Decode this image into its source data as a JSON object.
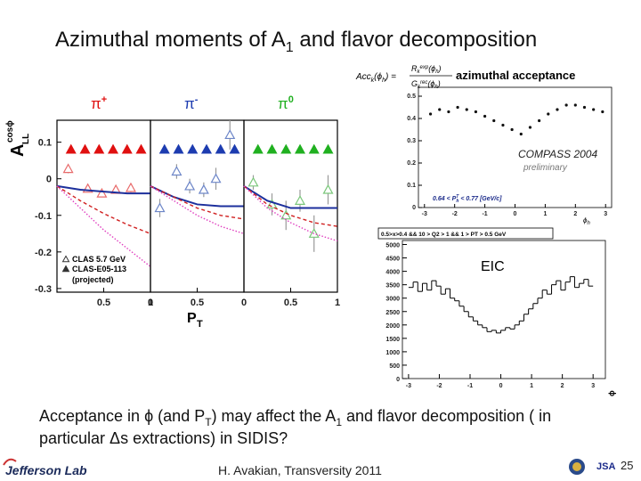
{
  "slide": {
    "title": [
      "Azimuthal moments of A",
      "1",
      " and flavor decomposition"
    ],
    "body_line1": [
      "Acceptance in ",
      "ϕ",
      " (and P",
      "T",
      ") may affect the A",
      "1",
      " and flavor decomposition ( in"
    ],
    "body_line2": [
      "particular ",
      "Δ",
      "s extractions)  in SIDIS?"
    ],
    "footer": {
      "logo": "Jefferson Lab",
      "credit": "H. Avakian, Transversity 2011",
      "page": "25",
      "org": "JSA"
    }
  },
  "chart_data": [
    {
      "type": "panels",
      "y_label": "A",
      "y_label_sup": "cosϕ",
      "y_label_sub": "LL",
      "x_label": "P",
      "x_label_sub": "T",
      "xlim": [
        0,
        1
      ],
      "ylim": [
        -0.31,
        0.16
      ],
      "yticks": [
        0.1,
        0,
        -0.1,
        -0.2,
        -0.3
      ],
      "series_names": [
        "CLAS 5.7 GeV",
        "CLAS-E05-113"
      ],
      "legend_note": "(projected)",
      "panels": [
        {
          "label": "π",
          "label_sup": "+",
          "label_color": "#e01010",
          "xticks": [
            0.5,
            1
          ],
          "series": [
            {
              "marker": "open-triangle",
              "color": "#e86a6a",
              "x": [
                0.12,
                0.33,
                0.48,
                0.63,
                0.79
              ],
              "values": [
                0.027,
                -0.027,
                -0.04,
                -0.03,
                -0.025
              ],
              "errors": [
                0.012,
                0.01,
                0.01,
                0.01,
                0.012
              ]
            },
            {
              "marker": "filled-triangle",
              "color": "#e01010",
              "x": [
                0.15,
                0.3,
                0.45,
                0.6,
                0.75,
                0.9
              ],
              "values": [
                0.08,
                0.08,
                0.08,
                0.08,
                0.08,
                0.08
              ]
            },
            {
              "line": "solid",
              "color": "#1c2f9c",
              "x": [
                0,
                0.25,
                0.5,
                0.75,
                1
              ],
              "values": [
                -0.02,
                -0.03,
                -0.035,
                -0.04,
                -0.04
              ]
            },
            {
              "line": "dashed",
              "color": "#d02020",
              "x": [
                0,
                0.25,
                0.5,
                0.75,
                1
              ],
              "values": [
                -0.02,
                -0.06,
                -0.095,
                -0.125,
                -0.15
              ]
            },
            {
              "line": "dotted",
              "color": "#e040c0",
              "x": [
                0,
                0.25,
                0.5,
                0.75,
                1
              ],
              "values": [
                -0.02,
                -0.08,
                -0.14,
                -0.19,
                -0.24
              ]
            }
          ]
        },
        {
          "label": "π",
          "label_sup": "-",
          "label_color": "#1d3cb0",
          "xticks": [
            0,
            0.5
          ],
          "series": [
            {
              "marker": "open-triangle",
              "color": "#6d86c8",
              "x": [
                0.1,
                0.28,
                0.42,
                0.57,
                0.7,
                0.85
              ],
              "values": [
                -0.08,
                0.02,
                -0.02,
                -0.03,
                0.0,
                0.12
              ],
              "errors": [
                0.025,
                0.02,
                0.02,
                0.02,
                0.03,
                0.04
              ]
            },
            {
              "marker": "filled-triangle",
              "color": "#1d3cb0",
              "x": [
                0.15,
                0.3,
                0.45,
                0.6,
                0.75,
                0.9
              ],
              "values": [
                0.08,
                0.08,
                0.08,
                0.08,
                0.08,
                0.08
              ]
            },
            {
              "line": "solid",
              "color": "#1c2f9c",
              "x": [
                0,
                0.25,
                0.5,
                0.75,
                1
              ],
              "values": [
                -0.02,
                -0.05,
                -0.07,
                -0.075,
                -0.075
              ]
            },
            {
              "line": "dashed",
              "color": "#d02020",
              "x": [
                0,
                0.25,
                0.5,
                0.75,
                1
              ],
              "values": [
                -0.02,
                -0.05,
                -0.08,
                -0.1,
                -0.11
              ]
            },
            {
              "line": "dotted",
              "color": "#e040c0",
              "x": [
                0,
                0.25,
                0.5,
                0.75,
                1
              ],
              "values": [
                -0.02,
                -0.06,
                -0.1,
                -0.13,
                -0.15
              ]
            }
          ]
        },
        {
          "label": "π",
          "label_sup": "0",
          "label_color": "#20b020",
          "xticks": [
            0,
            0.5,
            1
          ],
          "series": [
            {
              "marker": "open-triangle",
              "color": "#7bc77b",
              "x": [
                0.1,
                0.3,
                0.45,
                0.6,
                0.75,
                0.9
              ],
              "values": [
                -0.01,
                -0.07,
                -0.1,
                -0.06,
                -0.15,
                -0.03
              ],
              "errors": [
                0.02,
                0.03,
                0.04,
                0.03,
                0.05,
                0.04
              ]
            },
            {
              "marker": "filled-triangle",
              "color": "#20b020",
              "x": [
                0.15,
                0.3,
                0.45,
                0.6,
                0.75,
                0.9
              ],
              "values": [
                0.08,
                0.08,
                0.08,
                0.08,
                0.08,
                0.08
              ]
            },
            {
              "line": "solid",
              "color": "#1c2f9c",
              "x": [
                0,
                0.25,
                0.5,
                0.75,
                1
              ],
              "values": [
                -0.02,
                -0.06,
                -0.08,
                -0.08,
                -0.08
              ]
            },
            {
              "line": "dashed",
              "color": "#d02020",
              "x": [
                0,
                0.25,
                0.5,
                0.75,
                1
              ],
              "values": [
                -0.02,
                -0.07,
                -0.1,
                -0.12,
                -0.13
              ]
            },
            {
              "line": "dotted",
              "color": "#e040c0",
              "x": [
                0,
                0.25,
                0.5,
                0.75,
                1
              ],
              "values": [
                -0.02,
                -0.08,
                -0.12,
                -0.15,
                -0.17
              ]
            }
          ]
        }
      ]
    },
    {
      "type": "scatter",
      "formula": {
        "lhs": [
          "Acc",
          "k",
          "(ϕ",
          "h",
          ") ="
        ],
        "num": [
          "R",
          "k",
          "exp",
          "(ϕ",
          "h",
          ")"
        ],
        "den": [
          "G",
          "k",
          "rec",
          "(ϕ",
          "h",
          ")"
        ]
      },
      "title": "azimuthal acceptance",
      "label": "COMPASS  2004",
      "sublabel": "preliminary",
      "cut": "0.64 < P",
      "cut_sub": "h",
      "cut_sup": "T",
      "cut_rest": " < 0.77  [GeV/c]",
      "x_label": "ϕ",
      "x_label_sub": "h",
      "xlim": [
        -3.2,
        3.2
      ],
      "ylim": [
        0,
        0.54
      ],
      "xticks": [
        -3,
        -2,
        -1,
        0,
        1,
        2,
        3
      ],
      "yticks": [
        0,
        0.1,
        0.2,
        0.3,
        0.4,
        0.5
      ],
      "color": "#111111",
      "x": [
        -2.8,
        -2.5,
        -2.2,
        -1.9,
        -1.6,
        -1.3,
        -1.0,
        -0.7,
        -0.4,
        -0.1,
        0.2,
        0.5,
        0.8,
        1.1,
        1.4,
        1.7,
        2.0,
        2.3,
        2.6,
        2.9
      ],
      "values": [
        0.42,
        0.44,
        0.43,
        0.45,
        0.44,
        0.43,
        0.41,
        0.39,
        0.37,
        0.35,
        0.33,
        0.36,
        0.39,
        0.42,
        0.44,
        0.46,
        0.46,
        0.45,
        0.44,
        0.43
      ]
    },
    {
      "type": "histogram",
      "header": "0.5>x>0.4 && 10 > Q2 > 1 && 1 > PT > 0.5 GeV",
      "label": "EIC",
      "x_label": "ϕ",
      "xlim": [
        -3.2,
        3.4
      ],
      "ylim": [
        0,
        5150
      ],
      "xticks": [
        -3,
        -2,
        -1,
        0,
        1,
        2,
        3
      ],
      "yticks": [
        0,
        500,
        1000,
        1500,
        2000,
        2500,
        3000,
        3500,
        4000,
        4500,
        5000
      ],
      "color": "#000000",
      "bins": [
        -3,
        -2.85,
        -2.7,
        -2.55,
        -2.4,
        -2.25,
        -2.1,
        -1.95,
        -1.8,
        -1.65,
        -1.5,
        -1.35,
        -1.2,
        -1.05,
        -0.9,
        -0.75,
        -0.6,
        -0.45,
        -0.3,
        -0.15,
        0,
        0.15,
        0.3,
        0.45,
        0.6,
        0.75,
        0.9,
        1.05,
        1.2,
        1.35,
        1.5,
        1.65,
        1.8,
        1.95,
        2.1,
        2.25,
        2.4,
        2.55,
        2.7,
        2.85,
        3
      ],
      "values": [
        3400,
        3600,
        3250,
        3550,
        3300,
        3650,
        3450,
        3150,
        3350,
        3000,
        2900,
        2700,
        2500,
        2300,
        2150,
        2000,
        1900,
        1750,
        1800,
        1700,
        1800,
        1900,
        1850,
        2000,
        2150,
        2400,
        2600,
        2800,
        3000,
        3300,
        3150,
        3500,
        3650,
        3300,
        3600,
        3800,
        3400,
        3550,
        3700,
        3450
      ]
    }
  ]
}
